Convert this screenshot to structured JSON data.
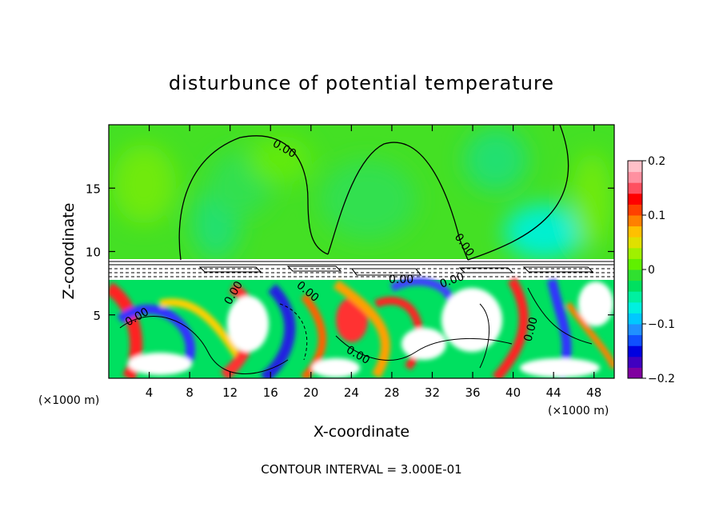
{
  "chart_data": {
    "type": "heatmap",
    "title": "disturbunce of potential temperature",
    "xlabel": "X-coordinate",
    "ylabel": "Z-coordinate",
    "x_unit": "(×1000 m)",
    "x_unit_right": "(×1000 m)",
    "xlim": [
      0,
      50
    ],
    "ylim": [
      0,
      20
    ],
    "x_ticks": [
      4,
      8,
      12,
      16,
      20,
      24,
      28,
      32,
      36,
      40,
      44,
      48
    ],
    "x_tick_labels": [
      "4",
      "8",
      "12",
      "16",
      "20",
      "24",
      "28",
      "32",
      "36",
      "40",
      "44",
      "48"
    ],
    "y_ticks": [
      5,
      10,
      15
    ],
    "y_tick_labels": [
      "5",
      "10",
      "15"
    ],
    "colorbar": {
      "range": [
        -0.2,
        0.2
      ],
      "tick_labels": [
        "0.2",
        "0.1",
        "0",
        "−0.1",
        "−0.2"
      ],
      "tick_values": [
        0.2,
        0.1,
        0,
        -0.1,
        -0.2
      ],
      "colors": [
        "#8000a0",
        "#4000c0",
        "#0000e0",
        "#1050ff",
        "#2090ff",
        "#00c8ff",
        "#00f0e0",
        "#00f0a0",
        "#00e060",
        "#30e030",
        "#60f000",
        "#a0f000",
        "#e0e000",
        "#ffc000",
        "#ff8000",
        "#ff4000",
        "#ff0000",
        "#ff5060",
        "#ff90a0",
        "#ffc0c8"
      ]
    },
    "contour_label": "0.00",
    "footer": "CONTOUR INTERVAL = 3.000E-01",
    "grid": false
  }
}
